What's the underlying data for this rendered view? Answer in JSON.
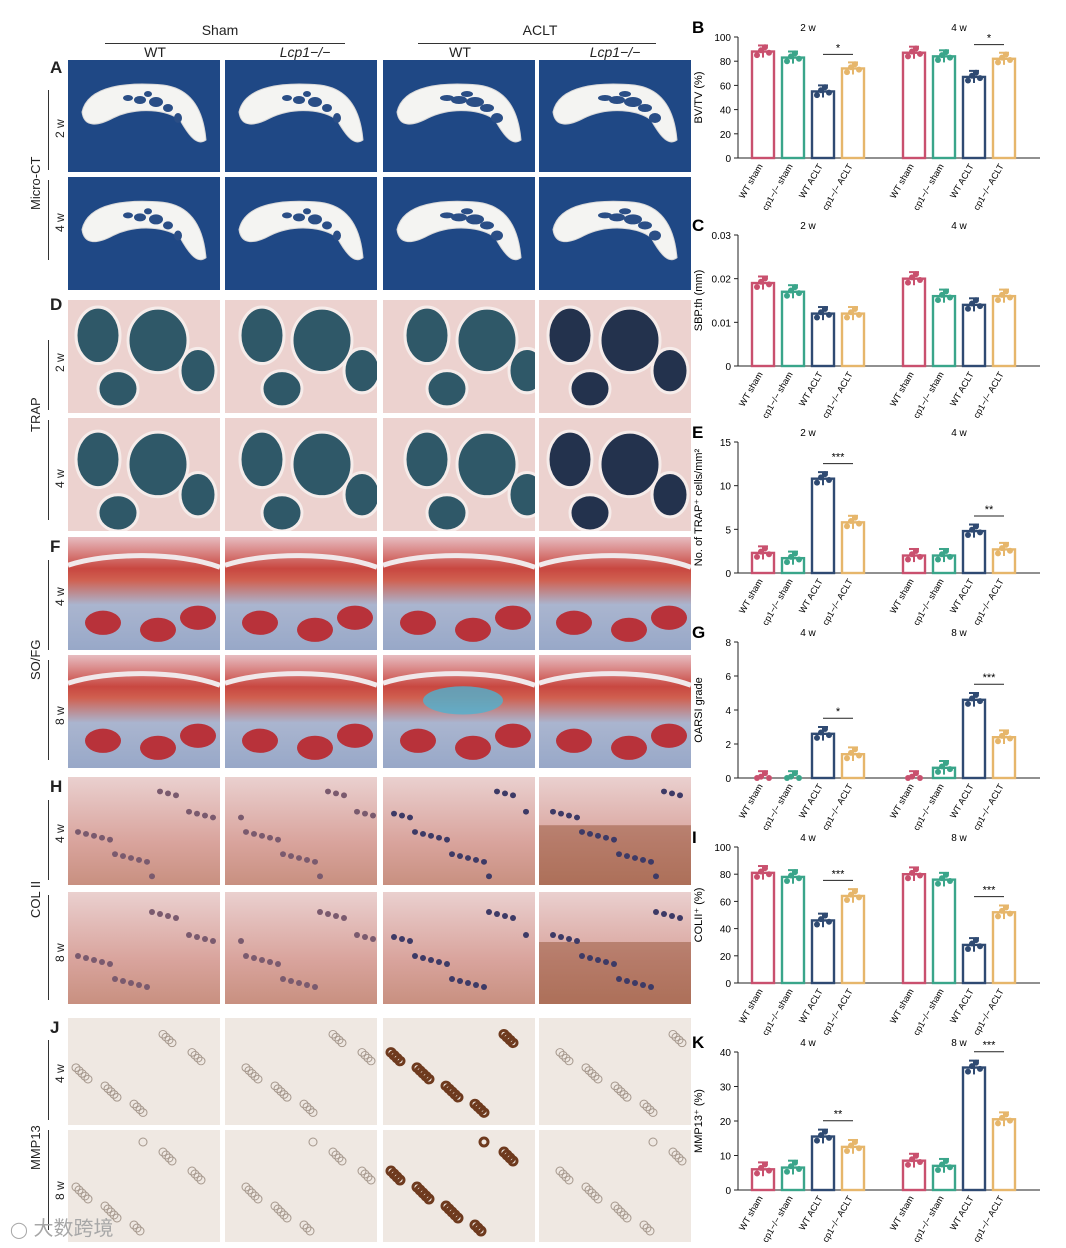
{
  "header": {
    "sham": "Sham",
    "aclt": "ACLT",
    "wt": "WT",
    "ko": "Lcp1−/−"
  },
  "panel_letters": {
    "A": "A",
    "D": "D",
    "F": "F",
    "H": "H",
    "J": "J"
  },
  "rows": {
    "microct": "Micro-CT",
    "trap": "TRAP",
    "sofg": "SO/FG",
    "col2": "COL II",
    "mmp13": "MMP13"
  },
  "timepoints": {
    "microct": [
      "2 w",
      "4 w"
    ],
    "trap": [
      "2 w",
      "4 w"
    ],
    "sofg": [
      "4 w",
      "8 w"
    ],
    "col2": [
      "4 w",
      "8 w"
    ],
    "mmp13": [
      "4 w",
      "8 w"
    ]
  },
  "watermark": "大数跨境",
  "colors": {
    "wt_sham": "#c9506e",
    "ko_sham": "#3aa58a",
    "wt_aclt": "#2f4a72",
    "ko_aclt": "#e6b66b",
    "ct_bg": "#1f4885"
  },
  "chart_data": [
    {
      "panel": "B",
      "type": "bar",
      "ylabel": "BV/TV (%)",
      "ylim": [
        0,
        100
      ],
      "yticks": [
        0,
        20,
        40,
        60,
        80,
        100
      ],
      "groups": [
        {
          "label": "2 w",
          "values": [
            88,
            83,
            55,
            74
          ],
          "sig": "*"
        },
        {
          "label": "4 w",
          "values": [
            87,
            84,
            67,
            82
          ],
          "sig": "*"
        }
      ],
      "categories": [
        "WT sham",
        "Lcp1−/− sham",
        "WT ACLT",
        "Lcp1−/− ACLT"
      ]
    },
    {
      "panel": "C",
      "type": "bar",
      "ylabel": "SBP.th (mm)",
      "ylim": [
        0,
        0.03
      ],
      "yticks": [
        0,
        0.01,
        0.02,
        0.03
      ],
      "ytick_labels": [
        "0",
        "0.01",
        "0.02",
        "0.03"
      ],
      "groups": [
        {
          "label": "2 w",
          "values": [
            0.019,
            0.017,
            0.012,
            0.012
          ],
          "sig": ""
        },
        {
          "label": "4 w",
          "values": [
            0.02,
            0.016,
            0.014,
            0.016
          ],
          "sig": ""
        }
      ],
      "categories": [
        "WT sham",
        "Lcp1−/− sham",
        "WT ACLT",
        "Lcp1−/− ACLT"
      ]
    },
    {
      "panel": "E",
      "type": "bar",
      "ylabel": "No. of TRAP⁺ cells/mm²",
      "ylim": [
        0,
        15
      ],
      "yticks": [
        0,
        5,
        10,
        15
      ],
      "groups": [
        {
          "label": "2 w",
          "values": [
            2.3,
            1.7,
            10.8,
            5.8
          ],
          "sig": "***"
        },
        {
          "label": "4 w",
          "values": [
            2.0,
            2.0,
            4.8,
            2.7
          ],
          "sig": "**"
        }
      ],
      "categories": [
        "WT sham",
        "Lcp1−/− sham",
        "WT ACLT",
        "Lcp1−/− ACLT"
      ]
    },
    {
      "panel": "G",
      "type": "bar",
      "ylabel": "OARSI grade",
      "ylim": [
        0,
        8
      ],
      "yticks": [
        0,
        2,
        4,
        6,
        8
      ],
      "groups": [
        {
          "label": "4 w",
          "values": [
            0,
            0,
            2.6,
            1.4
          ],
          "sig": "*"
        },
        {
          "label": "8 w",
          "values": [
            0,
            0.6,
            4.6,
            2.4
          ],
          "sig": "***"
        }
      ],
      "categories": [
        "WT sham",
        "Lcp1−/− sham",
        "WT ACLT",
        "Lcp1−/− ACLT"
      ]
    },
    {
      "panel": "I",
      "type": "bar",
      "ylabel": "COLII⁺ (%)",
      "ylim": [
        0,
        100
      ],
      "yticks": [
        0,
        20,
        40,
        60,
        80,
        100
      ],
      "groups": [
        {
          "label": "4 w",
          "values": [
            81,
            78,
            46,
            64
          ],
          "sig": "***"
        },
        {
          "label": "8 w",
          "values": [
            80,
            76,
            28,
            52
          ],
          "sig": "***"
        }
      ],
      "categories": [
        "WT sham",
        "Lcp1−/− sham",
        "WT ACLT",
        "Lcp1−/− ACLT"
      ]
    },
    {
      "panel": "K",
      "type": "bar",
      "ylabel": "MMP13⁺ (%)",
      "ylim": [
        0,
        40
      ],
      "yticks": [
        0,
        10,
        20,
        30,
        40
      ],
      "groups": [
        {
          "label": "4 w",
          "values": [
            6,
            6.5,
            15.5,
            12.5
          ],
          "sig": "**"
        },
        {
          "label": "8 w",
          "values": [
            8.5,
            7,
            35.5,
            20.5
          ],
          "sig": "***"
        }
      ],
      "categories": [
        "WT sham",
        "Lcp1−/− sham",
        "WT ACLT",
        "Lcp1−/− ACLT"
      ]
    }
  ]
}
